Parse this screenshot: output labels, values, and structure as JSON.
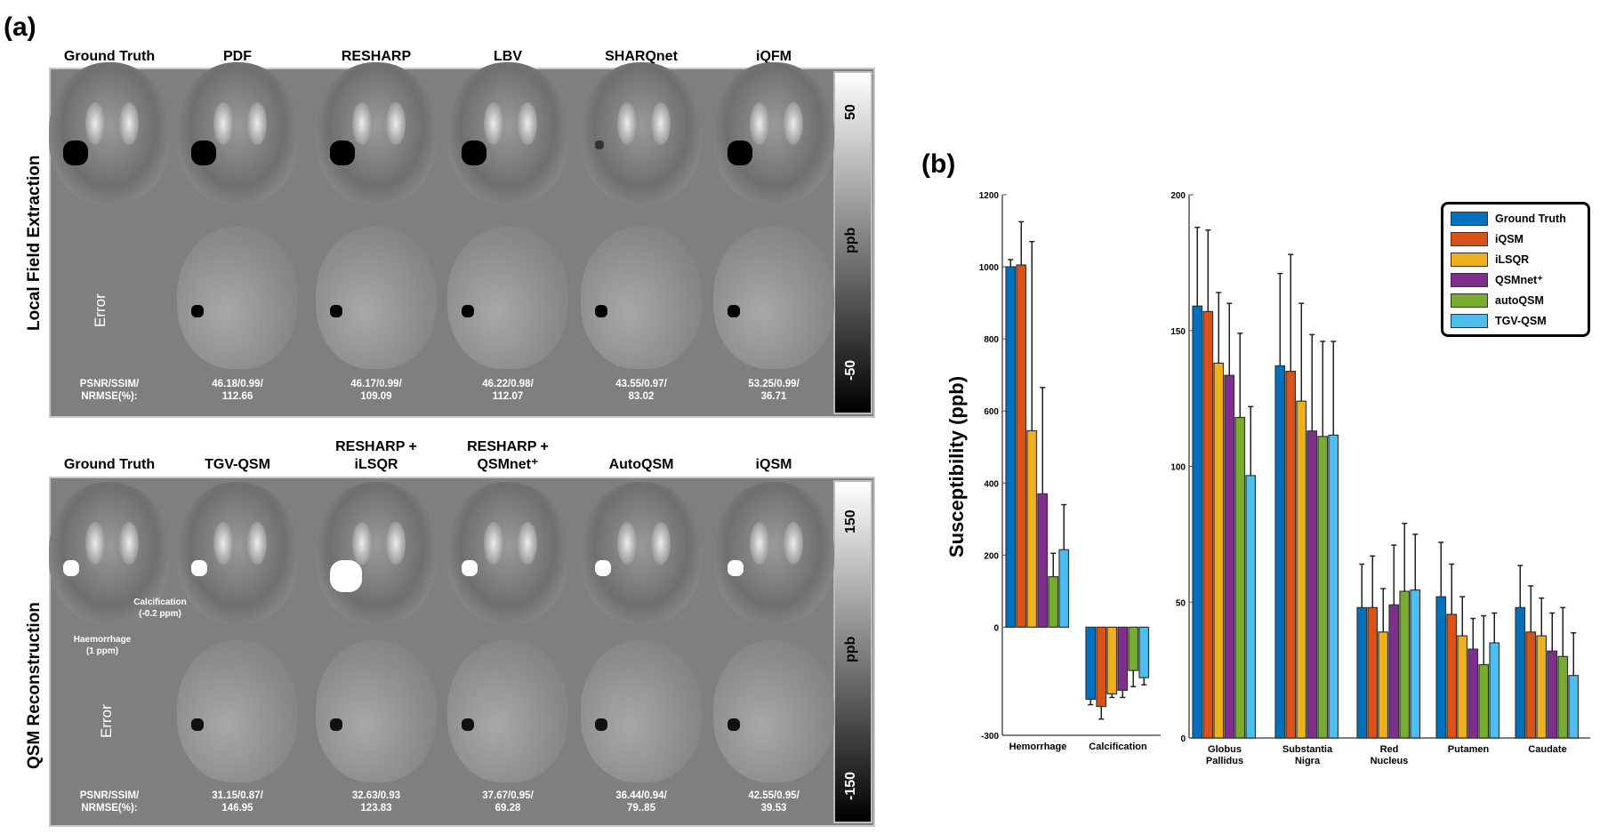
{
  "panel_a": {
    "label": "(a)",
    "top": {
      "row_label": "Local Field Extraction",
      "columns": [
        "Ground Truth",
        "PDF",
        "RESHARP",
        "LBV",
        "SHARQnet",
        "iQFM"
      ],
      "error_label": "Error",
      "metric_label": [
        "PSNR/SSIM/",
        "NRMSE(%):"
      ],
      "metrics": [
        [
          "46.18/0.99/",
          "112.66"
        ],
        [
          "46.17/0.99/",
          "109.09"
        ],
        [
          "46.22/0.98/",
          "112.07"
        ],
        [
          "43.55/0.97/",
          "83.02"
        ],
        [
          "53.25/0.99/",
          "36.71"
        ]
      ],
      "colorbar": {
        "max": "50",
        "min": "-50",
        "unit": "ppb"
      }
    },
    "bottom": {
      "row_label": "QSM Reconstruction",
      "columns": [
        [
          "Ground Truth"
        ],
        [
          "TGV-QSM"
        ],
        [
          "RESHARP +",
          "iLSQR"
        ],
        [
          "RESHARP +",
          "QSMnet⁺"
        ],
        [
          "AutoQSM"
        ],
        [
          "iQSM"
        ]
      ],
      "error_label": "Error",
      "metric_label": [
        "PSNR/SSIM/",
        "NRMSE(%):"
      ],
      "metrics": [
        [
          "31.15/0.87/",
          "146.95"
        ],
        [
          "32.63/0.93",
          "123.83"
        ],
        [
          "37.67/0.95/",
          "69.28"
        ],
        [
          "36.44/0.94/",
          "79..85"
        ],
        [
          "42.55/0.95/",
          "39.53"
        ]
      ],
      "annotations": {
        "haemorrhage": [
          "Haemorrhage",
          "(1 ppm)"
        ],
        "calcification": [
          "Calcification",
          "(-0.2 ppm)"
        ]
      },
      "colorbar": {
        "max": "150",
        "min": "-150",
        "unit": "ppb"
      }
    }
  },
  "chart_data": {
    "label": "(b)",
    "type": "bar",
    "ylabel": "Susceptibility (ppb)",
    "legend_position": "top-right",
    "series_names": [
      "Ground Truth",
      "iQSM",
      "iLSQR",
      "QSMnet⁺",
      "autoQSM",
      "TGV-QSM"
    ],
    "colors": [
      "#0072bd",
      "#d95319",
      "#edb120",
      "#7e2f8e",
      "#77ac30",
      "#4dbeee"
    ],
    "subplots": [
      {
        "ylim": [
          -300,
          1200
        ],
        "yticks": [
          "1200",
          "1000",
          "800",
          "600",
          "400",
          "200",
          "0",
          "-300"
        ],
        "ytick_values": [
          1200,
          1000,
          800,
          600,
          400,
          200,
          0,
          -300
        ],
        "categories": [
          [
            "Hemorrhage"
          ],
          [
            "Calcification"
          ]
        ],
        "values": [
          [
            1000,
            1005,
            545,
            370,
            140,
            215
          ],
          [
            -200,
            -220,
            -185,
            -175,
            -120,
            -140
          ]
        ],
        "errors": [
          [
            20,
            120,
            525,
            295,
            65,
            125
          ],
          [
            15,
            35,
            10,
            20,
            45,
            20
          ]
        ]
      },
      {
        "ylim": [
          0,
          200
        ],
        "yticks": [
          "200",
          "150",
          "100",
          "50",
          "0"
        ],
        "ytick_values": [
          200,
          150,
          100,
          50,
          0
        ],
        "categories": [
          [
            "Globus",
            "Pallidus"
          ],
          [
            "Substantia",
            "Nigra"
          ],
          [
            "Red",
            "Nucleus"
          ],
          [
            "Putamen"
          ],
          [
            "Caudate"
          ]
        ],
        "values": [
          [
            159,
            157,
            138,
            133.5,
            118,
            96.6
          ],
          [
            137,
            135,
            124,
            113,
            111,
            111.5
          ],
          [
            48,
            48,
            39,
            49,
            54,
            54.5
          ],
          [
            52,
            45.5,
            37.6,
            32.7,
            27,
            35
          ],
          [
            48,
            39,
            37.6,
            32,
            30,
            23
          ]
        ],
        "errors": [
          [
            29,
            30,
            26,
            26.5,
            31,
            25.4
          ],
          [
            34,
            43,
            36,
            35.5,
            35,
            34.5
          ],
          [
            16,
            19,
            16,
            22,
            25,
            20.5
          ],
          [
            20,
            18.5,
            14.4,
            11.3,
            18,
            11
          ],
          [
            15.5,
            17,
            13.9,
            14,
            18,
            15.7
          ]
        ]
      }
    ]
  }
}
